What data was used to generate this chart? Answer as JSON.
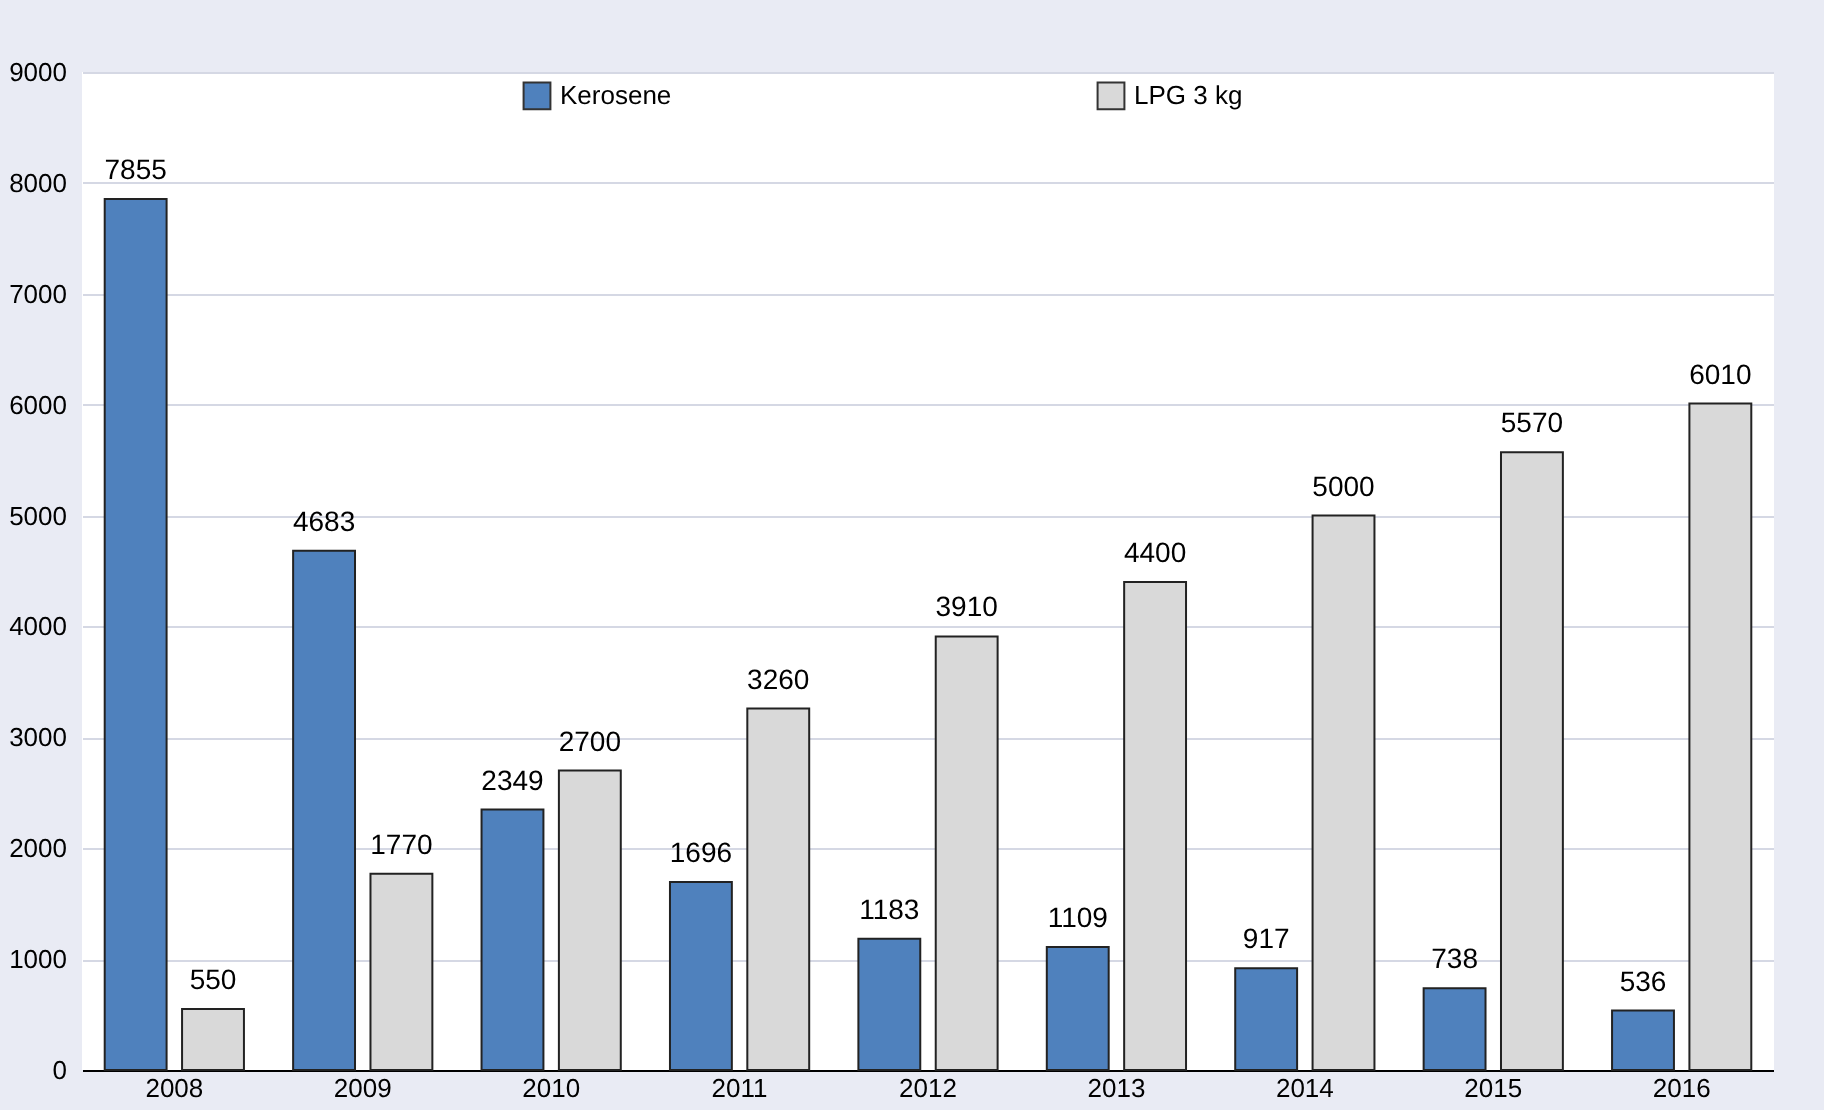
{
  "chart_data": {
    "type": "bar",
    "categories": [
      "2008",
      "2009",
      "2010",
      "2011",
      "2012",
      "2013",
      "2014",
      "2015",
      "2016"
    ],
    "series": [
      {
        "name": "Kerosene",
        "color": "#4f81bd",
        "values": [
          7855,
          4683,
          2349,
          1696,
          1183,
          1109,
          917,
          738,
          536
        ]
      },
      {
        "name": "LPG 3 kg",
        "color": "#d9d9d9",
        "values": [
          550,
          1770,
          2700,
          3260,
          3910,
          4400,
          5000,
          5570,
          6010
        ]
      }
    ],
    "ylim": [
      0,
      9000
    ],
    "yticks": [
      0,
      1000,
      2000,
      3000,
      4000,
      5000,
      6000,
      7000,
      8000,
      9000
    ],
    "grid": "y",
    "legend": "top",
    "data_labels": true
  }
}
